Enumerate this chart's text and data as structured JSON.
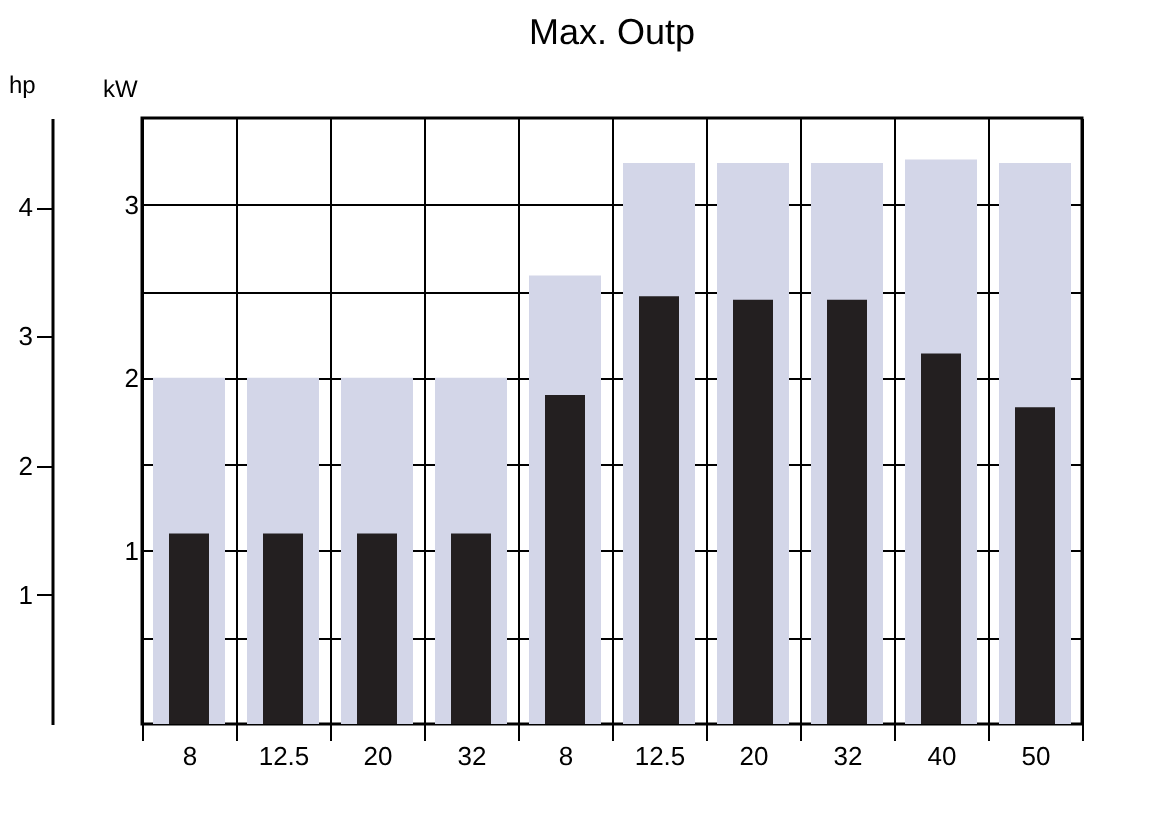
{
  "chart_data": {
    "type": "bar",
    "title": "Max. Outp",
    "ylabel": "kW",
    "y2label": "hp",
    "categories": [
      "8",
      "12.5",
      "20",
      "32",
      "8",
      "12.5",
      "20",
      "32",
      "40",
      "50"
    ],
    "series": [
      {
        "color": "#d3d6e8",
        "values": [
          2.0,
          2.0,
          2.0,
          2.0,
          2.59,
          3.24,
          3.24,
          3.24,
          3.26,
          3.24
        ]
      },
      {
        "color": "#231f20",
        "values": [
          1.1,
          1.1,
          1.1,
          1.1,
          1.9,
          2.47,
          2.45,
          2.45,
          2.14,
          1.83
        ]
      }
    ],
    "ylim": [
      0,
      3.5
    ],
    "yticks": [
      {
        "value": 0.5,
        "label": null
      },
      1,
      {
        "value": 1.5,
        "label": null
      },
      2,
      {
        "value": 2.5,
        "label": null
      },
      3
    ],
    "y2lim": [
      0,
      4.69
    ],
    "y2ticks": [
      1,
      2,
      3,
      4
    ],
    "grid": true
  }
}
